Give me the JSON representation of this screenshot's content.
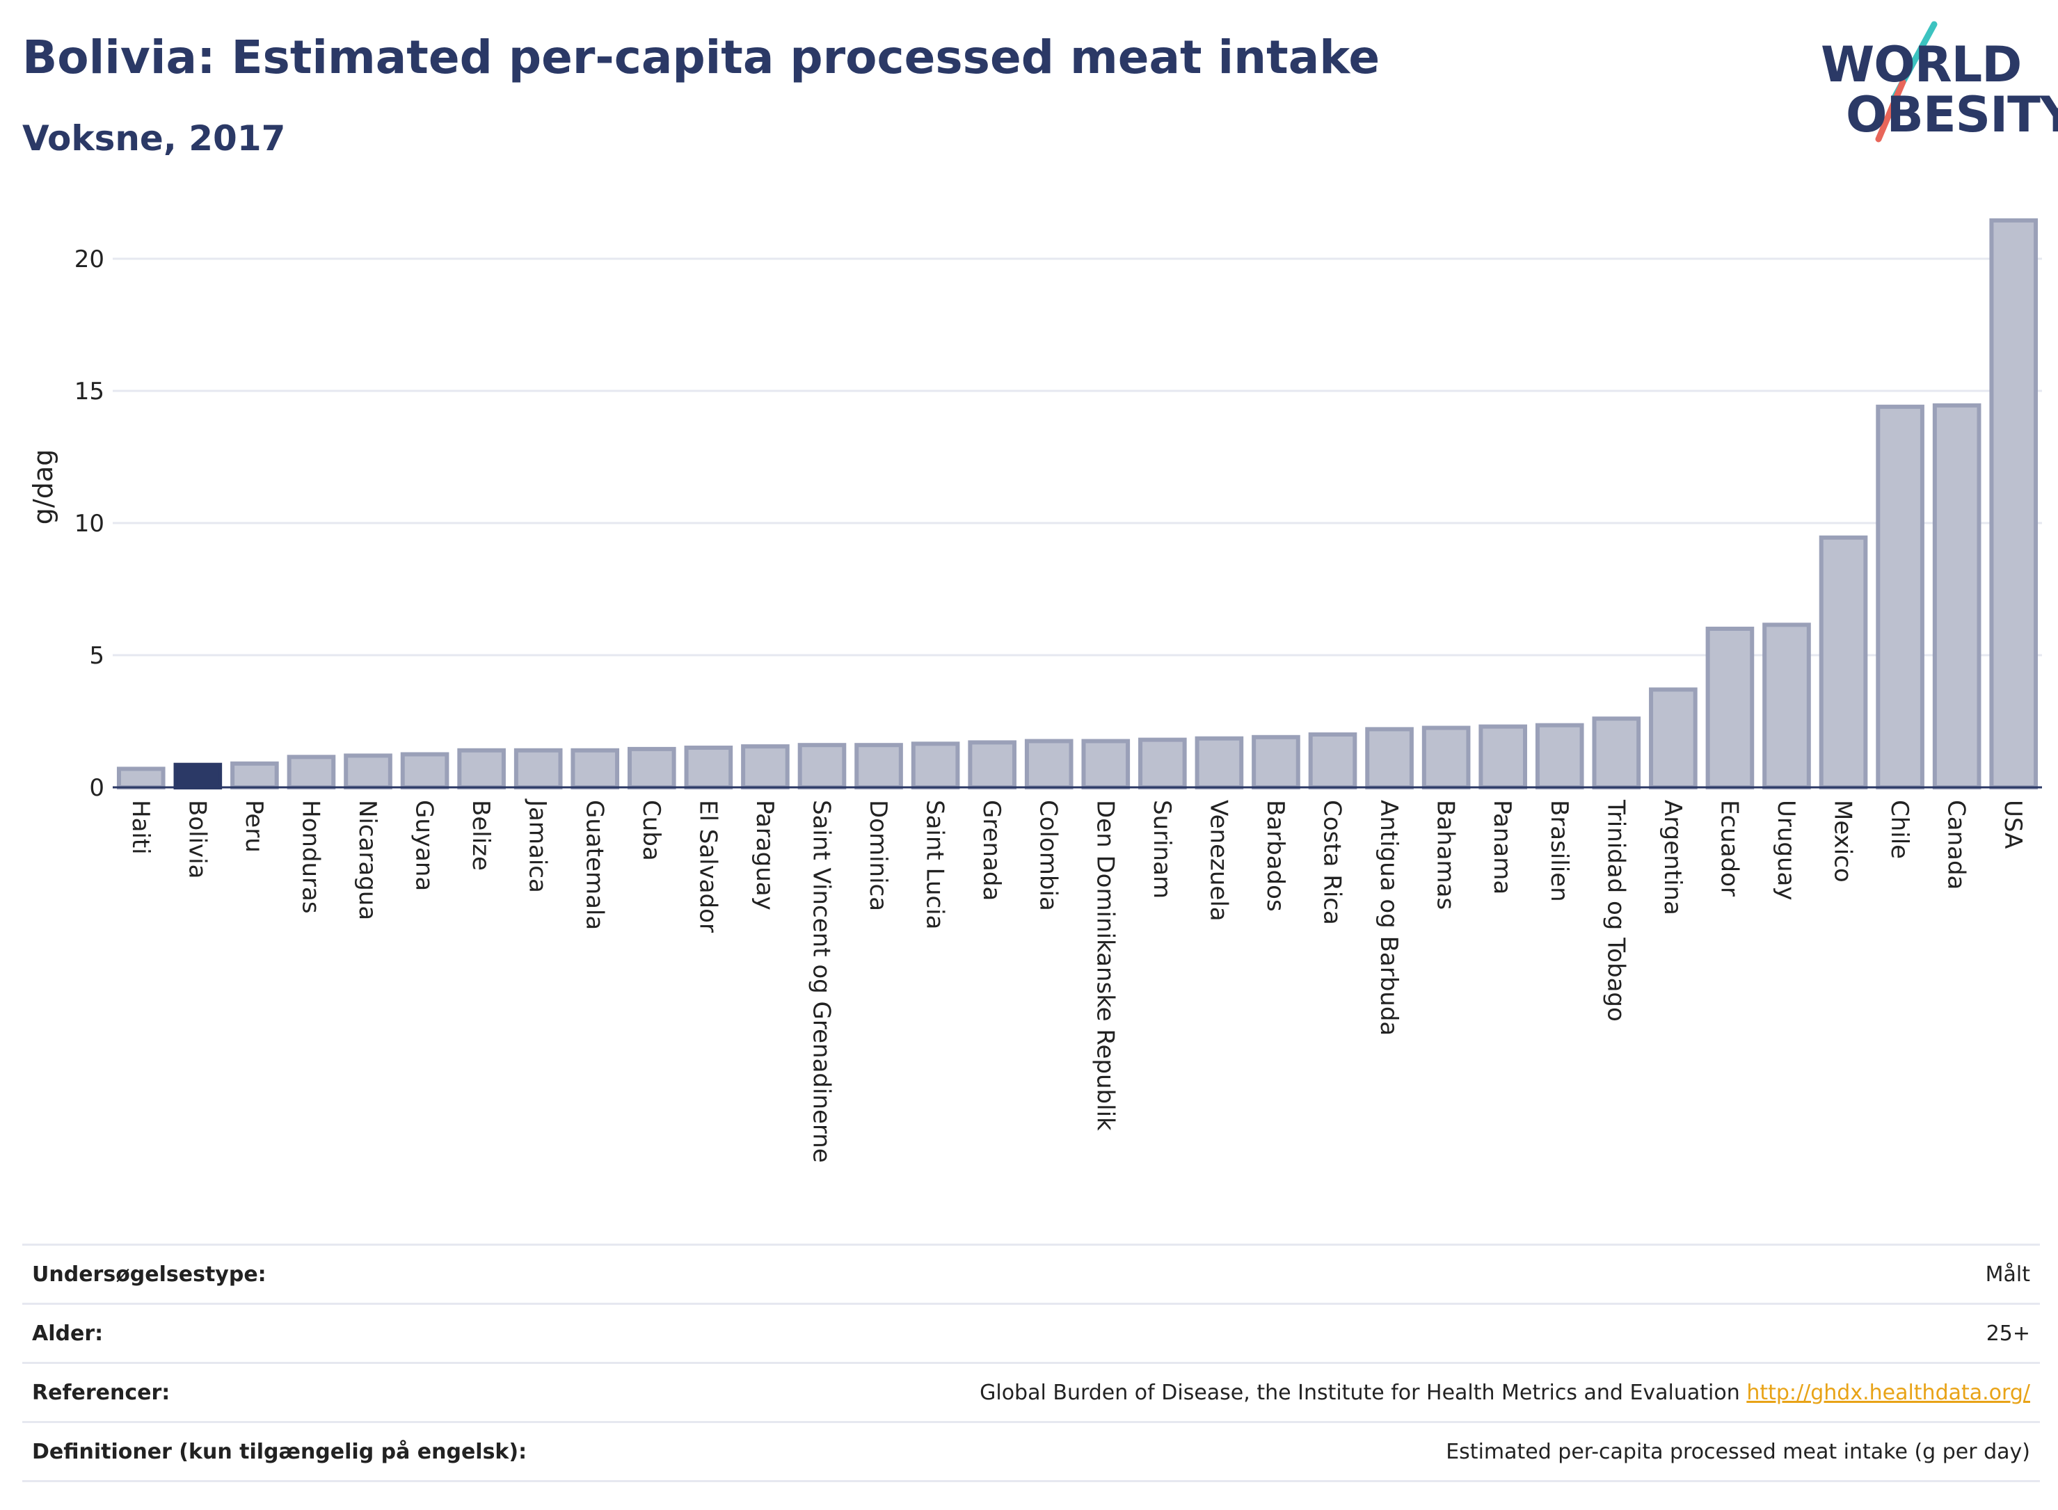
{
  "header": {
    "title": "Bolivia: Estimated per-capita processed meat intake",
    "subtitle": "Voksne, 2017"
  },
  "logo": {
    "line1": "WORLD",
    "line2": "OBESITY",
    "accent_colors": [
      "#3cc3c0",
      "#e8665a"
    ]
  },
  "colors": {
    "highlight": "#2b3966",
    "bar_fill": "#bcc0cf",
    "bar_stroke": "#9aa0b8",
    "grid": "#e6e8f0",
    "link": "#e8a317"
  },
  "chart_data": {
    "type": "bar",
    "ylabel": "g/dag",
    "ylim": [
      0,
      22
    ],
    "yticks": [
      0,
      5,
      10,
      15,
      20
    ],
    "grid": true,
    "highlight": "Bolivia",
    "categories": [
      "Haiti",
      "Bolivia",
      "Peru",
      "Honduras",
      "Nicaragua",
      "Guyana",
      "Belize",
      "Jamaica",
      "Guatemala",
      "Cuba",
      "El Salvador",
      "Paraguay",
      "Saint Vincent og Grenadinerne",
      "Dominica",
      "Saint Lucia",
      "Grenada",
      "Colombia",
      "Den Dominikanske Republik",
      "Surinam",
      "Venezuela",
      "Barbados",
      "Costa Rica",
      "Antigua og Barbuda",
      "Bahamas",
      "Panama",
      "Brasilien",
      "Trinidad og Tobago",
      "Argentina",
      "Ecuador",
      "Uruguay",
      "Mexico",
      "Chile",
      "Canada",
      "USA"
    ],
    "values": [
      0.7,
      0.85,
      0.9,
      1.15,
      1.2,
      1.25,
      1.4,
      1.4,
      1.4,
      1.45,
      1.5,
      1.55,
      1.6,
      1.6,
      1.65,
      1.7,
      1.75,
      1.75,
      1.8,
      1.85,
      1.9,
      2.0,
      2.2,
      2.25,
      2.3,
      2.35,
      2.6,
      3.7,
      6.0,
      6.15,
      9.45,
      14.4,
      14.45,
      21.45
    ]
  },
  "meta": {
    "rows": [
      {
        "label": "Undersøgelsestype:",
        "value": "Målt"
      },
      {
        "label": "Alder:",
        "value": "25+"
      },
      {
        "label": "Referencer:",
        "value": "Global Burden of Disease, the Institute for Health Metrics and Evaluation",
        "link": "http://ghdx.healthdata.org/"
      },
      {
        "label": "Definitioner (kun tilgængelig på engelsk):",
        "value": "Estimated per-capita processed meat intake (g per day)"
      }
    ]
  }
}
